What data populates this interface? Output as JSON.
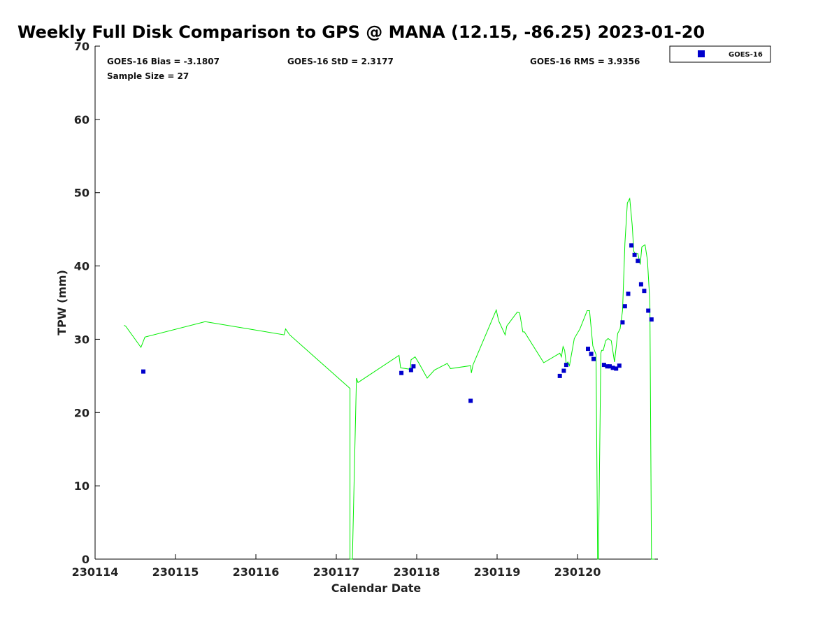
{
  "chart_data": {
    "type": "scatter",
    "title": "Weekly Full Disk Comparison to GPS @ MANA (12.15, -86.25) 2023-01-20",
    "xlabel": "Calendar Date",
    "ylabel": "TPW (mm)",
    "xlim": [
      230114,
      230121
    ],
    "ylim": [
      0,
      70
    ],
    "x_ticks": [
      "230114",
      "230115",
      "230116",
      "230117",
      "230118",
      "230119",
      "230120"
    ],
    "y_ticks": [
      "0",
      "10",
      "20",
      "30",
      "40",
      "50",
      "60",
      "70"
    ],
    "grid": false,
    "legend_position": "top-right",
    "stats": {
      "bias": "GOES-16 Bias = -3.1807",
      "std": "GOES-16 StD = 2.3177",
      "rms": "GOES-16 RMS = 3.9356",
      "sample": "Sample Size = 27"
    },
    "gps_line": {
      "color": "#00ee00",
      "x": [
        230114.36,
        230114.38,
        230114.57,
        230114.62,
        230115.37,
        230116.35,
        230116.37,
        230116.42,
        230117.15,
        230117.17,
        230117.17,
        230117.2,
        230117.2,
        230117.25,
        230117.27,
        230117.78,
        230117.8,
        230117.92,
        230117.93,
        230117.98,
        230118.03,
        230118.13,
        230118.22,
        230118.38,
        230118.42,
        230118.67,
        230118.68,
        230118.7,
        230118.97,
        230118.99,
        230119.02,
        230119.1,
        230119.12,
        230119.25,
        230119.28,
        230119.32,
        230119.34,
        230119.58,
        230119.78,
        230119.8,
        230119.82,
        230119.84,
        230119.86,
        230119.88,
        230119.9,
        230119.96,
        230120.03,
        230120.12,
        230120.15,
        230120.19,
        230120.23,
        230120.25,
        230120.26,
        230120.29,
        230120.3,
        230120.32,
        230120.35,
        230120.38,
        230120.42,
        230120.46,
        230120.5,
        230120.53,
        230120.56,
        230120.59,
        230120.62,
        230120.65,
        230120.68,
        230120.7,
        230120.72,
        230120.75,
        230120.78,
        230120.8,
        230120.84,
        230120.87,
        230120.9,
        230120.92,
        230120.94,
        230120.96
      ],
      "y": [
        31.9,
        31.8,
        28.9,
        30.3,
        32.4,
        30.6,
        31.4,
        30.6,
        23.5,
        23.3,
        0,
        0,
        0,
        24.7,
        24.1,
        27.8,
        26.1,
        25.9,
        27.2,
        27.6,
        26.7,
        24.7,
        25.8,
        26.7,
        26,
        26.4,
        25.4,
        26.5,
        33.5,
        34.0,
        32.5,
        30.6,
        31.8,
        33.7,
        33.6,
        31.0,
        31.0,
        26.8,
        28.1,
        27.6,
        29.0,
        28.5,
        26.6,
        26.9,
        26.4,
        30.1,
        31.4,
        33.9,
        33.9,
        29.1,
        27.9,
        0,
        0,
        28.1,
        28.5,
        28.5,
        29.8,
        30.1,
        29.8,
        26.9,
        30.8,
        31.4,
        33.9,
        43.1,
        48.6,
        49.2,
        45.6,
        42.0,
        41.6,
        41.7,
        40.2,
        42.6,
        42.9,
        40.8,
        35.1,
        0,
        0,
        0
      ]
    },
    "series": [
      {
        "name": "GOES-16",
        "color": "#0000cc",
        "x": [
          230114.6,
          230117.81,
          230117.93,
          230117.96,
          230118.67,
          230119.78,
          230119.83,
          230119.86,
          230120.13,
          230120.17,
          230120.2,
          230120.33,
          230120.37,
          230120.4,
          230120.44,
          230120.48,
          230120.52,
          230120.56,
          230120.59,
          230120.63,
          230120.67,
          230120.71,
          230120.75,
          230120.79,
          230120.83,
          230120.88,
          230120.92
        ],
        "y": [
          25.6,
          25.4,
          25.8,
          26.3,
          21.6,
          25.0,
          25.7,
          26.5,
          28.7,
          28.0,
          27.3,
          26.5,
          26.3,
          26.3,
          26.1,
          26.0,
          26.4,
          32.3,
          34.5,
          36.2,
          42.8,
          41.5,
          40.7,
          37.5,
          36.6,
          33.9,
          32.7
        ]
      }
    ]
  }
}
